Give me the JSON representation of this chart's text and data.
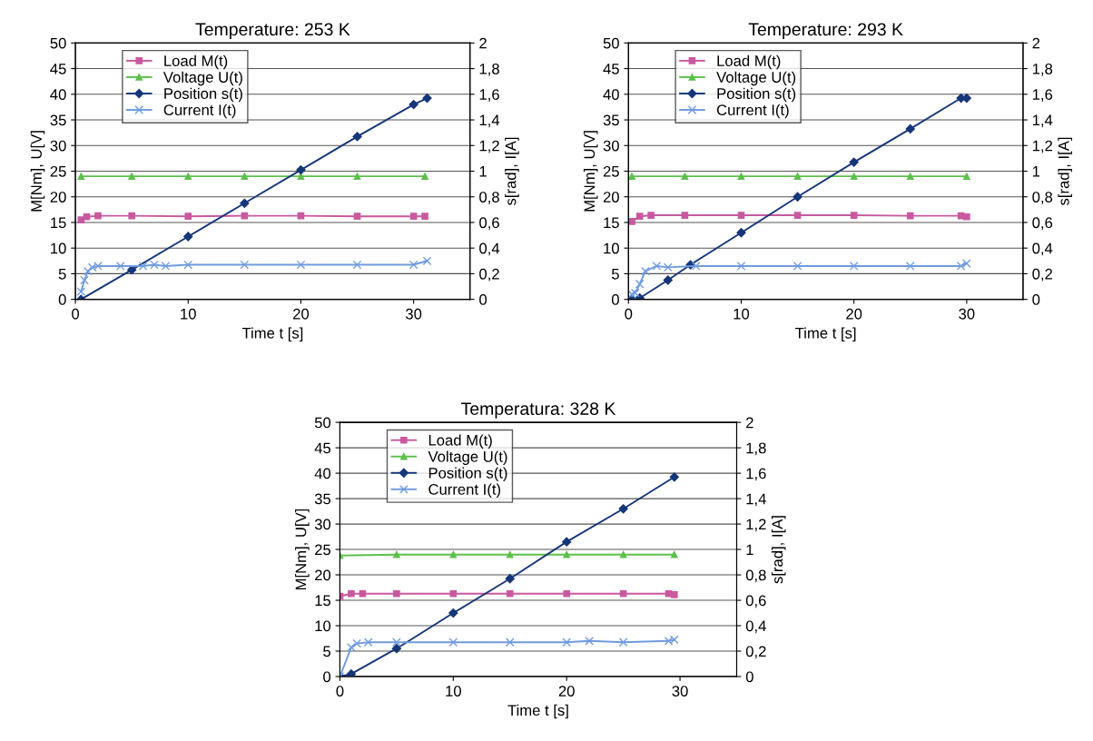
{
  "chart_data": [
    {
      "type": "line",
      "title": "Temperature: 253 K",
      "xlabel": "Time t [s]",
      "ylabel": "M[Nm], U[V]",
      "y2label": "s[rad], I[A]",
      "xlim": [
        0,
        35
      ],
      "xticks": [
        0,
        10,
        20,
        30
      ],
      "ylim": [
        0,
        50
      ],
      "yticks": [
        0,
        5,
        10,
        15,
        20,
        25,
        30,
        35,
        40,
        45,
        50
      ],
      "y2lim": [
        0,
        2
      ],
      "y2ticks": [
        0,
        {
          "value": 0.2,
          "label": "0,2"
        },
        {
          "value": 0.4,
          "label": "0,4"
        },
        {
          "value": 0.6,
          "label": "0,6"
        },
        {
          "value": 0.8,
          "label": "0,8"
        },
        1,
        {
          "value": 1.2,
          "label": "1,2"
        },
        {
          "value": 1.4,
          "label": "1,4"
        },
        {
          "value": 1.6,
          "label": "1,6"
        },
        {
          "value": 1.8,
          "label": "1,8"
        },
        2
      ],
      "grid": "y",
      "legend": "top left",
      "series": [
        {
          "name": "Load M(t)",
          "color": "#c9599f",
          "marker": "square",
          "x": [
            0.5,
            1,
            2,
            5,
            10,
            15,
            20,
            25,
            30,
            31
          ],
          "values": [
            15.5,
            16.1,
            16.3,
            16.3,
            16.2,
            16.3,
            16.3,
            16.2,
            16.2,
            16.2
          ]
        },
        {
          "name": "Voltage U(t)",
          "color": "#5cc04a",
          "marker": "triangle",
          "x": [
            0.5,
            5,
            10,
            15,
            20,
            25,
            31
          ],
          "values": [
            24,
            24,
            24,
            24,
            24,
            24,
            24
          ]
        },
        {
          "name": "Position s(t)",
          "color": "#16367a",
          "marker": "diamond",
          "axis": "y2",
          "x": [
            0.5,
            5,
            10,
            15,
            20,
            25,
            30,
            31.2
          ],
          "values": [
            0,
            0.23,
            0.49,
            0.75,
            1.01,
            1.27,
            1.52,
            1.57
          ]
        },
        {
          "name": "Current I(t)",
          "color": "#6f9be0",
          "marker": "cross",
          "axis": "y2",
          "x": [
            0.5,
            0.8,
            1.1,
            1.5,
            2,
            4,
            6,
            7,
            8,
            10,
            15,
            20,
            25,
            30,
            31.2
          ],
          "values": [
            0.06,
            0.15,
            0.22,
            0.25,
            0.26,
            0.26,
            0.26,
            0.27,
            0.26,
            0.27,
            0.27,
            0.27,
            0.27,
            0.27,
            0.3
          ]
        }
      ]
    },
    {
      "type": "line",
      "title": "Temperature: 293 K",
      "xlabel": "Time t [s]",
      "ylabel": "M[Nm], U[V]",
      "y2label": "s[rad], I[A]",
      "xlim": [
        0,
        35
      ],
      "xticks": [
        0,
        10,
        20,
        30
      ],
      "ylim": [
        0,
        50
      ],
      "yticks": [
        0,
        5,
        10,
        15,
        20,
        25,
        30,
        35,
        40,
        45,
        50
      ],
      "y2lim": [
        0,
        2
      ],
      "y2ticks": [
        0,
        {
          "value": 0.2,
          "label": "0,2"
        },
        {
          "value": 0.4,
          "label": "0,4"
        },
        {
          "value": 0.6,
          "label": "0,6"
        },
        {
          "value": 0.8,
          "label": "0,8"
        },
        1,
        {
          "value": 1.2,
          "label": "1,2"
        },
        {
          "value": 1.4,
          "label": "1,4"
        },
        {
          "value": 1.6,
          "label": "1,6"
        },
        {
          "value": 1.8,
          "label": "1,8"
        },
        2
      ],
      "grid": "y",
      "legend": "top left",
      "series": [
        {
          "name": "Load M(t)",
          "color": "#c9599f",
          "marker": "square",
          "x": [
            0.3,
            1,
            2,
            5,
            10,
            15,
            20,
            25,
            29.5,
            30
          ],
          "values": [
            15.2,
            16.2,
            16.4,
            16.4,
            16.4,
            16.4,
            16.4,
            16.3,
            16.3,
            16.1
          ]
        },
        {
          "name": "Voltage U(t)",
          "color": "#5cc04a",
          "marker": "triangle",
          "x": [
            0.3,
            5,
            10,
            15,
            20,
            25,
            30
          ],
          "values": [
            24,
            24,
            24,
            24,
            24,
            24,
            24
          ]
        },
        {
          "name": "Position s(t)",
          "color": "#16367a",
          "marker": "diamond",
          "axis": "y2",
          "x": [
            0.3,
            1,
            3.5,
            5.5,
            10,
            15,
            20,
            25,
            29.5,
            30
          ],
          "values": [
            0,
            0.01,
            0.15,
            0.27,
            0.52,
            0.8,
            1.07,
            1.33,
            1.57,
            1.57
          ]
        },
        {
          "name": "Current I(t)",
          "color": "#6f9be0",
          "marker": "cross",
          "axis": "y2",
          "x": [
            0.3,
            0.6,
            1,
            1.5,
            2.5,
            3.5,
            6,
            10,
            15,
            20,
            25,
            29.5,
            30
          ],
          "values": [
            0.04,
            0.05,
            0.12,
            0.22,
            0.26,
            0.25,
            0.26,
            0.26,
            0.26,
            0.26,
            0.26,
            0.26,
            0.28
          ]
        }
      ]
    },
    {
      "type": "line",
      "title": "Temperatura: 328 K",
      "xlabel": "Time t [s]",
      "ylabel": "M[Nm], U[V]",
      "y2label": "s[rad], I[A]",
      "xlim": [
        0,
        35
      ],
      "xticks": [
        0,
        10,
        20,
        30
      ],
      "ylim": [
        0,
        50
      ],
      "yticks": [
        0,
        5,
        10,
        15,
        20,
        25,
        30,
        35,
        40,
        45,
        50
      ],
      "y2lim": [
        0,
        2
      ],
      "y2ticks": [
        0,
        {
          "value": 0.2,
          "label": "0,2"
        },
        {
          "value": 0.4,
          "label": "0,4"
        },
        {
          "value": 0.6,
          "label": "0,6"
        },
        {
          "value": 0.8,
          "label": "0,8"
        },
        1,
        {
          "value": 1.2,
          "label": "1,2"
        },
        {
          "value": 1.4,
          "label": "1,4"
        },
        {
          "value": 1.6,
          "label": "1,6"
        },
        {
          "value": 1.8,
          "label": "1,8"
        },
        2
      ],
      "grid": "y",
      "legend": "top left",
      "series": [
        {
          "name": "Load M(t)",
          "color": "#c9599f",
          "marker": "square",
          "x": [
            0,
            1,
            2,
            5,
            10,
            15,
            20,
            25,
            29,
            29.5
          ],
          "values": [
            15.8,
            16.3,
            16.3,
            16.3,
            16.3,
            16.3,
            16.3,
            16.3,
            16.3,
            16.1
          ]
        },
        {
          "name": "Voltage U(t)",
          "color": "#5cc04a",
          "marker": "triangle",
          "x": [
            0,
            5,
            10,
            15,
            20,
            25,
            29.5
          ],
          "values": [
            23.8,
            24,
            24,
            24,
            24,
            24,
            24
          ]
        },
        {
          "name": "Position s(t)",
          "color": "#16367a",
          "marker": "diamond",
          "axis": "y2",
          "x": [
            0,
            1,
            5,
            10,
            15,
            20,
            25,
            29.5
          ],
          "values": [
            0,
            0.02,
            0.22,
            0.5,
            0.77,
            1.06,
            1.32,
            1.57
          ]
        },
        {
          "name": "Current I(t)",
          "color": "#6f9be0",
          "marker": "cross",
          "axis": "y2",
          "x": [
            0,
            1,
            1.5,
            2.5,
            5,
            10,
            15,
            20,
            22,
            25,
            29,
            29.5
          ],
          "values": [
            0,
            0.23,
            0.26,
            0.27,
            0.27,
            0.27,
            0.27,
            0.27,
            0.28,
            0.27,
            0.28,
            0.29
          ]
        }
      ]
    }
  ]
}
